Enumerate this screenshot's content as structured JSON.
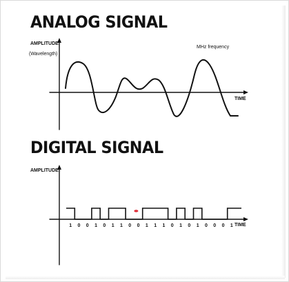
{
  "analog": {
    "title": "ANALOG SIGNAL",
    "y_label": "AMPLITUDE",
    "y_sublabel": "(Wavelength)",
    "x_label": "TIME",
    "annotation": "MHz frequency"
  },
  "digital": {
    "title": "DIGITAL SIGNAL",
    "y_label": "AMPLITUDE",
    "x_label": "TIME",
    "bits": [
      1,
      0,
      0,
      1,
      0,
      1,
      1,
      0,
      0,
      1,
      1,
      1,
      0,
      1,
      0,
      1,
      0,
      0,
      0,
      1
    ],
    "marker_color": "#e0303a"
  },
  "colors": {
    "ink": "#111111",
    "background": "#ffffff"
  }
}
